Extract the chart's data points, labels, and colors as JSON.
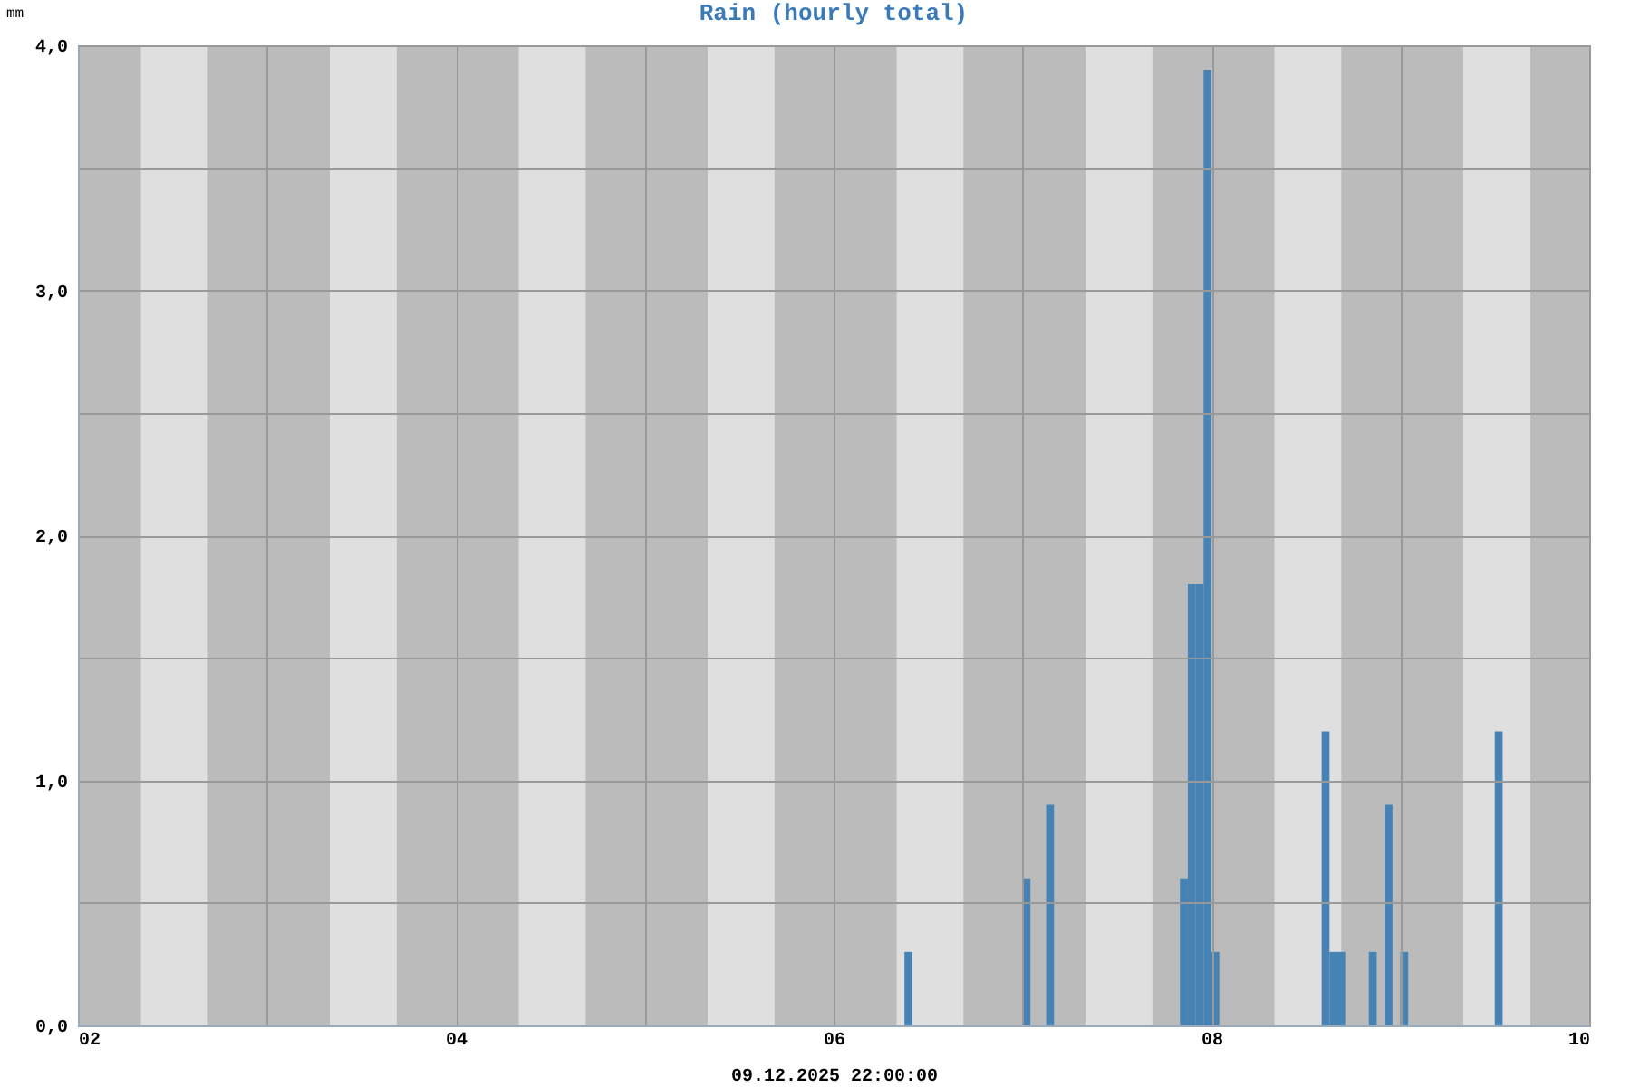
{
  "chart_data": {
    "type": "bar",
    "title": "Rain (hourly total)",
    "ylabel": "mm",
    "xlabel": "09.12.2025 22:00:00",
    "x": [
      "2025-12-06T09:00",
      "2025-12-07T00:00",
      "2025-12-07T03:00",
      "2025-12-07T20:00",
      "2025-12-07T21:00",
      "2025-12-07T22:00",
      "2025-12-07T23:00",
      "2025-12-08T00:00",
      "2025-12-08T14:00",
      "2025-12-08T15:00",
      "2025-12-08T16:00",
      "2025-12-08T20:00",
      "2025-12-08T22:00",
      "2025-12-09T00:00",
      "2025-12-09T12:00"
    ],
    "series": [
      {
        "color": "#4682b4",
        "values": [
          0.3,
          0.6,
          0.9,
          0.6,
          1.8,
          1.8,
          3.9,
          0.3,
          1.2,
          0.3,
          0.3,
          0.3,
          0.9,
          0.3,
          1.2
        ]
      }
    ],
    "xlim": [
      "2025-12-02",
      "2025-12-10"
    ],
    "xticks": [
      {
        "value": "2025-12-02",
        "label": "02"
      },
      {
        "value": "2025-12-03",
        "label": null
      },
      {
        "value": "2025-12-04",
        "label": "04"
      },
      {
        "value": "2025-12-05",
        "label": null
      },
      {
        "value": "2025-12-06",
        "label": "06"
      },
      {
        "value": "2025-12-07",
        "label": null
      },
      {
        "value": "2025-12-08",
        "label": "08"
      },
      {
        "value": "2025-12-09",
        "label": null
      },
      {
        "value": "2025-12-10",
        "label": "10"
      }
    ],
    "ylim": [
      0,
      4
    ],
    "yticks": [
      {
        "value": 0,
        "label": "0,0"
      },
      {
        "value": 0.5,
        "label": null
      },
      {
        "value": 1,
        "label": "1,0"
      },
      {
        "value": 1.5,
        "label": null
      },
      {
        "value": 2,
        "label": "2,0"
      },
      {
        "value": 2.5,
        "label": null
      },
      {
        "value": 3,
        "label": "3,0"
      },
      {
        "value": 3.5,
        "label": null
      },
      {
        "value": 4,
        "label": "4,0"
      }
    ],
    "grid": true,
    "bands": [
      {
        "axis": "x",
        "from": "2025-12-02T08:00",
        "to": "2025-12-02T16:30",
        "color": "#dfdfdf"
      },
      {
        "axis": "x",
        "from": "2025-12-03T08:00",
        "to": "2025-12-03T16:30",
        "color": "#dfdfdf"
      },
      {
        "axis": "x",
        "from": "2025-12-04T08:00",
        "to": "2025-12-04T16:30",
        "color": "#dfdfdf"
      },
      {
        "axis": "x",
        "from": "2025-12-05T08:00",
        "to": "2025-12-05T16:30",
        "color": "#dfdfdf"
      },
      {
        "axis": "x",
        "from": "2025-12-06T08:00",
        "to": "2025-12-06T16:30",
        "color": "#dfdfdf"
      },
      {
        "axis": "x",
        "from": "2025-12-07T08:00",
        "to": "2025-12-07T16:30",
        "color": "#dfdfdf"
      },
      {
        "axis": "x",
        "from": "2025-12-08T08:00",
        "to": "2025-12-08T16:30",
        "color": "#dfdfdf"
      },
      {
        "axis": "x",
        "from": "2025-12-09T08:00",
        "to": "2025-12-09T16:30",
        "color": "#dfdfdf"
      }
    ]
  }
}
